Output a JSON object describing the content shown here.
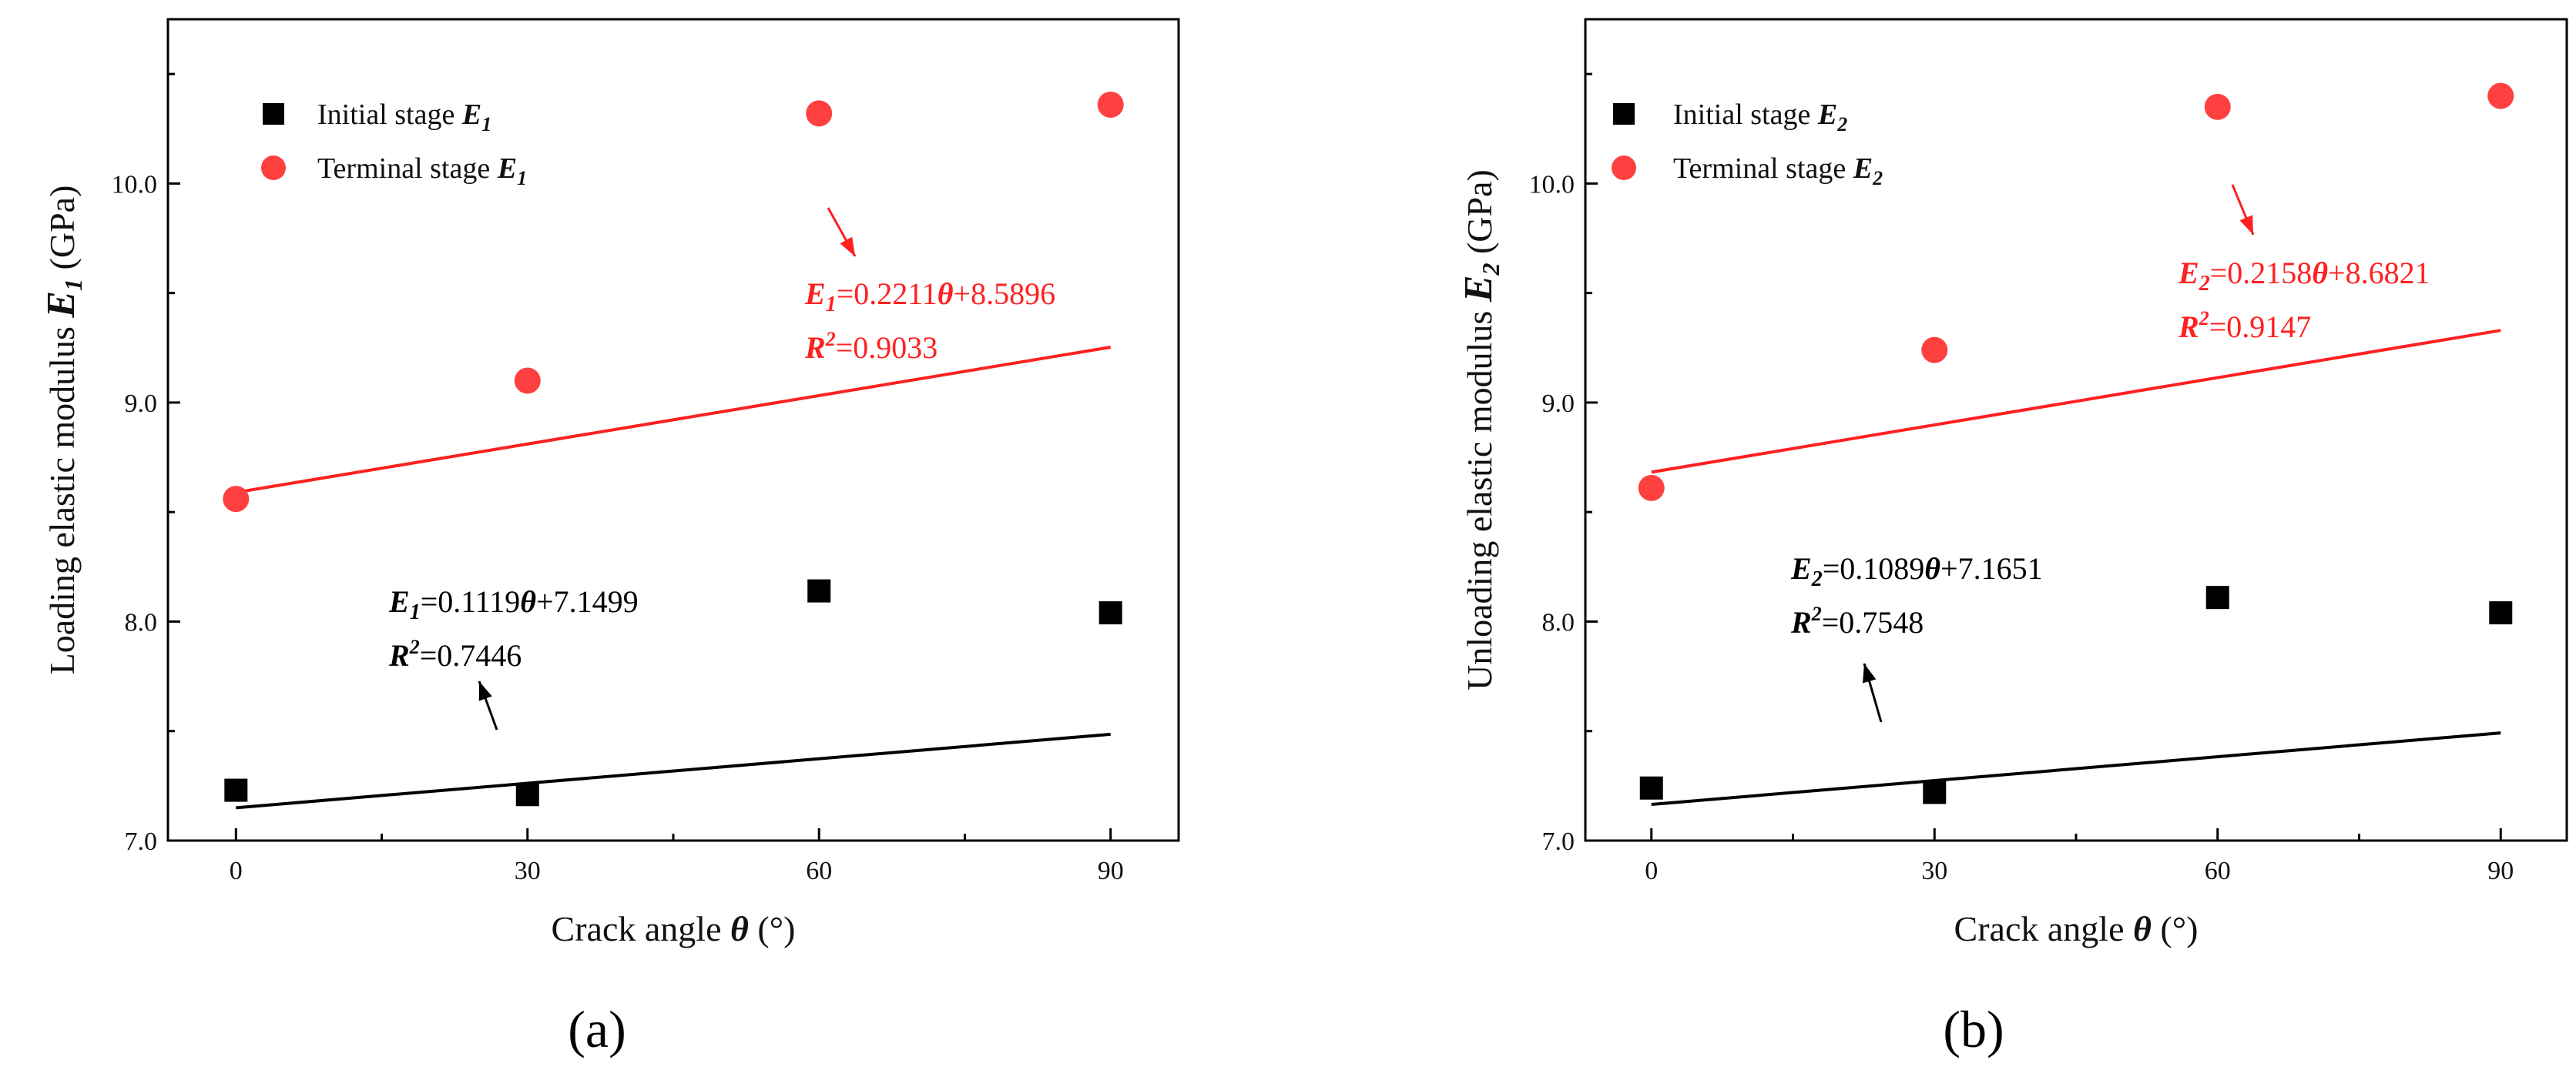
{
  "figure": {
    "colors": {
      "initial": "#000000",
      "terminal": "#ff2020",
      "terminal_marker": "#ff4040",
      "axis": "#000000"
    }
  },
  "chart_data": [
    {
      "type": "scatter",
      "panel_label": "(a)",
      "xlabel": {
        "text": "Crack angle ",
        "var": "θ",
        "unit": " (°)"
      },
      "ylabel": {
        "text": "Loading elastic modulus ",
        "var": "E",
        "sub": "1",
        "unit": " (GPa)"
      },
      "xlim": [
        -7,
        97
      ],
      "ylim": [
        7.0,
        10.75
      ],
      "xticks": [
        0,
        30,
        60,
        90
      ],
      "yticks": [
        7.0,
        8.0,
        9.0,
        10.0
      ],
      "xtick_labels": [
        "0",
        "30",
        "60",
        "90"
      ],
      "ytick_labels": [
        "7.0",
        "8.0",
        "9.0",
        "10.0"
      ],
      "series": [
        {
          "name": "Initial stage",
          "legend": {
            "text": "Initial stage ",
            "var": "E",
            "sub": "1"
          },
          "marker": "square",
          "color": "#000000",
          "x": [
            0,
            30,
            60,
            90
          ],
          "y": [
            7.23,
            7.21,
            8.14,
            8.04
          ],
          "fit": {
            "slope": 0.1119,
            "intercept": 7.1499,
            "per_degree": 0.03333,
            "equation": {
              "var": "E",
              "sub": "1",
              "rhs": "=0.1119",
              "theta": "θ",
              "tail": "+7.1499"
            },
            "r2": {
              "var": "R",
              "sup": "2",
              "value": "=0.7446"
            }
          }
        },
        {
          "name": "Terminal stage",
          "legend": {
            "text": "Terminal stage ",
            "var": "E",
            "sub": "1"
          },
          "marker": "circle",
          "color": "#ff4040",
          "x": [
            0,
            30,
            60,
            90
          ],
          "y": [
            8.56,
            9.1,
            10.32,
            10.36
          ],
          "fit": {
            "slope": 0.2211,
            "intercept": 8.5896,
            "per_degree": 0.03333,
            "equation": {
              "var": "E",
              "sub": "1",
              "rhs": "=0.2211",
              "theta": "θ",
              "tail": "+8.5896"
            },
            "r2": {
              "var": "R",
              "sup": "2",
              "value": "=0.9033"
            }
          }
        }
      ]
    },
    {
      "type": "scatter",
      "panel_label": "(b)",
      "xlabel": {
        "text": "Crack angle ",
        "var": "θ",
        "unit": " (°)"
      },
      "ylabel": {
        "text": "Unloading elastic modulus ",
        "var": "E",
        "sub": "2",
        "unit": " (GPa)"
      },
      "xlim": [
        -7,
        97
      ],
      "ylim": [
        7.0,
        10.75
      ],
      "xticks": [
        0,
        30,
        60,
        90
      ],
      "yticks": [
        7.0,
        8.0,
        9.0,
        10.0
      ],
      "xtick_labels": [
        "0",
        "30",
        "60",
        "90"
      ],
      "ytick_labels": [
        "7.0",
        "8.0",
        "9.0",
        "10.0"
      ],
      "series": [
        {
          "name": "Initial stage",
          "legend": {
            "text": "Initial stage ",
            "var": "E",
            "sub": "2"
          },
          "marker": "square",
          "color": "#000000",
          "x": [
            0,
            30,
            60,
            90
          ],
          "y": [
            7.24,
            7.22,
            8.11,
            8.04
          ],
          "fit": {
            "slope": 0.1089,
            "intercept": 7.1651,
            "per_degree": 0.03333,
            "equation": {
              "var": "E",
              "sub": "2",
              "rhs": "=0.1089",
              "theta": "θ",
              "tail": "+7.1651"
            },
            "r2": {
              "var": "R",
              "sup": "2",
              "value": "=0.7548"
            }
          }
        },
        {
          "name": "Terminal stage",
          "legend": {
            "text": "Terminal stage ",
            "var": "E",
            "sub": "2"
          },
          "marker": "circle",
          "color": "#ff4040",
          "x": [
            0,
            30,
            60,
            90
          ],
          "y": [
            8.61,
            9.24,
            10.35,
            10.4
          ],
          "fit": {
            "slope": 0.2158,
            "intercept": 8.6821,
            "per_degree": 0.03333,
            "equation": {
              "var": "E",
              "sub": "2",
              "rhs": "=0.2158",
              "theta": "θ",
              "tail": "+8.6821"
            },
            "r2": {
              "var": "R",
              "sup": "2",
              "value": "=0.9147"
            }
          }
        }
      ]
    }
  ]
}
